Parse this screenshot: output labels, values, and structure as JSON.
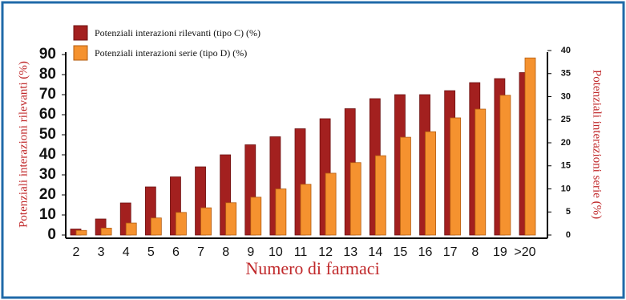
{
  "chart_data": {
    "type": "bar",
    "xlabel": "Numero di farmaci",
    "ylabel": "Potenziali interazioni rilevanti (%)",
    "y2label": "Potenziali interazioni serie  (%)",
    "categories": [
      "2",
      "3",
      "4",
      "5",
      "6",
      "7",
      "8",
      "9",
      "10",
      "11",
      "12",
      "13",
      "14",
      "15",
      "16",
      "17",
      "8",
      "19",
      ">20"
    ],
    "series": [
      {
        "name": "Potenziali interazioni rilevanti (tipo C) (%)",
        "color": "#a3201f",
        "axis": "y",
        "values": [
          3,
          8,
          16,
          24,
          29,
          34,
          40,
          45,
          49,
          53,
          58,
          63,
          68,
          70,
          70,
          72,
          76,
          78,
          81
        ]
      },
      {
        "name": "Potenziali interazioni serie  (tipo D) (%)",
        "color": "#f5922f",
        "axis": "y2",
        "values": [
          1,
          1.5,
          2.6,
          3.7,
          4.9,
          5.9,
          7,
          8.2,
          10,
          11,
          13.4,
          15.7,
          17.2,
          21.2,
          22.4,
          25.4,
          27.3,
          30.3,
          38.4
        ]
      }
    ],
    "ylim": [
      0,
      90
    ],
    "yticks": [
      0,
      10,
      20,
      30,
      40,
      50,
      60,
      70,
      80,
      90
    ],
    "y2lim": [
      0,
      40
    ],
    "y2ticks": [
      0,
      5,
      10,
      15,
      20,
      25,
      30,
      35,
      40
    ],
    "grid": false
  }
}
